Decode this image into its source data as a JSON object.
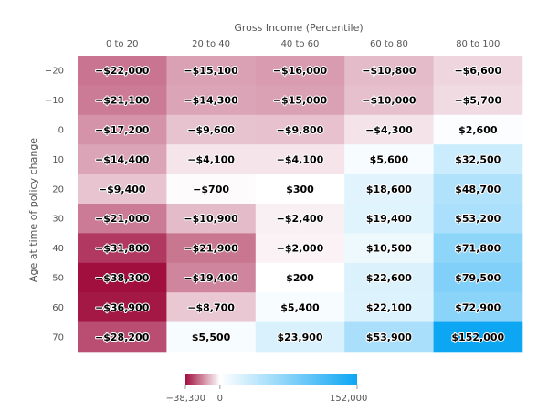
{
  "chart_data": {
    "type": "heatmap",
    "title": "",
    "xlabel": "Gross Income (Percentile)",
    "ylabel": "Age at time of policy change",
    "x_categories": [
      "0 to 20",
      "20 to 40",
      "40 to 60",
      "60 to 80",
      "80 to 100"
    ],
    "y_categories": [
      "-20",
      "-10",
      "0",
      "10",
      "20",
      "30",
      "40",
      "50",
      "60",
      "70"
    ],
    "values": [
      [
        -22000,
        -15100,
        -16000,
        -10800,
        -6600
      ],
      [
        -21100,
        -14300,
        -15000,
        -10000,
        -5700
      ],
      [
        -17200,
        -9600,
        -9800,
        -4300,
        2600
      ],
      [
        -14400,
        -4100,
        -4100,
        5600,
        32500
      ],
      [
        -9400,
        -700,
        300,
        18600,
        48700
      ],
      [
        -21000,
        -10900,
        -2400,
        19400,
        53200
      ],
      [
        -31800,
        -21900,
        -2000,
        10500,
        71800
      ],
      [
        -38300,
        -19400,
        200,
        22600,
        79500
      ],
      [
        -36900,
        -8700,
        5400,
        22100,
        72900
      ],
      [
        -28200,
        5500,
        23900,
        53900,
        152000
      ]
    ],
    "labels": [
      [
        "−$22,000",
        "−$15,100",
        "−$16,000",
        "−$10,800",
        "−$6,600"
      ],
      [
        "−$21,100",
        "−$14,300",
        "−$15,000",
        "−$10,000",
        "−$5,700"
      ],
      [
        "−$17,200",
        "−$9,600",
        "−$9,800",
        "−$4,300",
        "$2,600"
      ],
      [
        "−$14,400",
        "−$4,100",
        "−$4,100",
        "$5,600",
        "$32,500"
      ],
      [
        "−$9,400",
        "−$700",
        "$300",
        "$18,600",
        "$48,700"
      ],
      [
        "−$21,000",
        "−$10,900",
        "−$2,400",
        "$19,400",
        "$53,200"
      ],
      [
        "−$31,800",
        "−$21,900",
        "−$2,000",
        "$10,500",
        "$71,800"
      ],
      [
        "−$38,300",
        "−$19,400",
        "$200",
        "$22,600",
        "$79,500"
      ],
      [
        "−$36,900",
        "−$8,700",
        "$5,400",
        "$22,100",
        "$72,900"
      ],
      [
        "−$28,200",
        "$5,500",
        "$23,900",
        "$53,900",
        "$152,000"
      ]
    ],
    "y_tick_labels": [
      "−20",
      "−10",
      "0",
      "10",
      "20",
      "30",
      "40",
      "50",
      "60",
      "70"
    ],
    "color_scale": {
      "min": -38300,
      "mid": 0,
      "max": 152000,
      "min_color": "#a10f3f",
      "mid_color": "#ffffff",
      "max_color": "#0da6f3",
      "tick_labels": [
        "−38,300",
        "0",
        "152,000"
      ]
    },
    "legend_position": "bottom-center"
  }
}
